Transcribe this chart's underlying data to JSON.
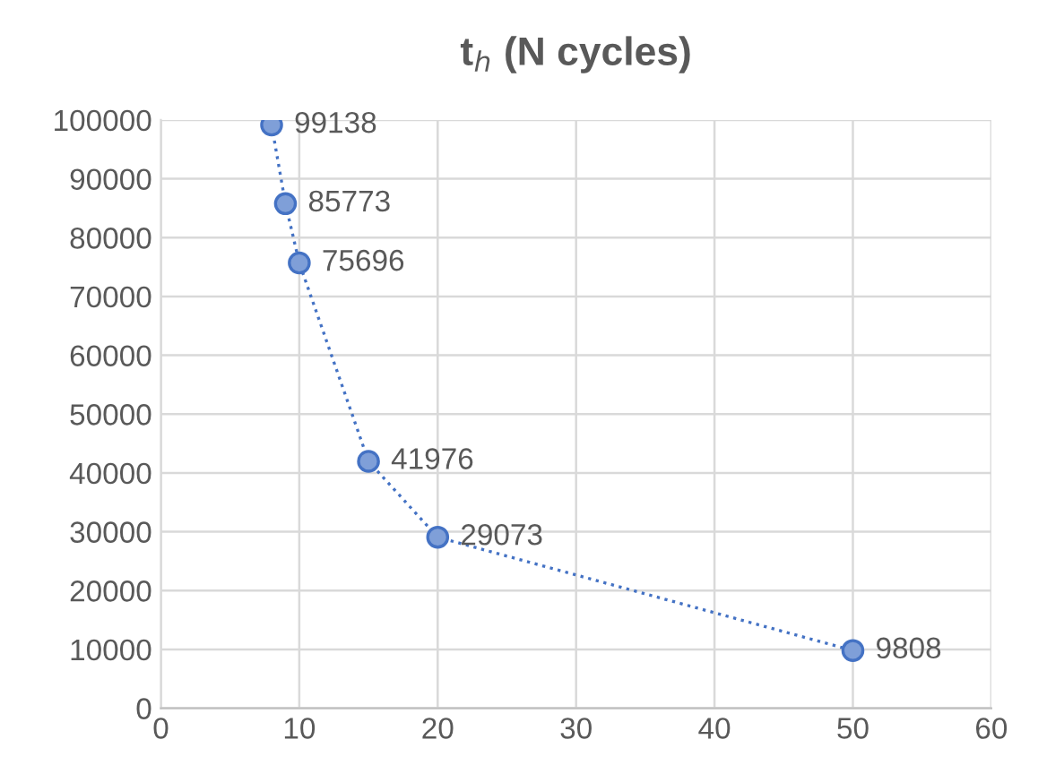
{
  "chart_data": {
    "type": "scatter",
    "title": "t$_{h}$ (N cycles)",
    "x": [
      8,
      9,
      10,
      15,
      20,
      50
    ],
    "series": [
      {
        "color": "#4472c4",
        "values": [
          99138,
          85773,
          75696,
          41976,
          29073,
          9808
        ]
      }
    ],
    "xlim": [
      0,
      60
    ],
    "xticks": [
      0,
      10,
      20,
      30,
      40,
      50,
      60
    ],
    "ylim": [
      0,
      100000
    ],
    "yticks": [
      0,
      10000,
      20000,
      30000,
      40000,
      50000,
      60000,
      70000,
      80000,
      90000,
      100000
    ],
    "grid": true,
    "marker": "circle",
    "line_style": "dotted",
    "data_labels": true
  }
}
